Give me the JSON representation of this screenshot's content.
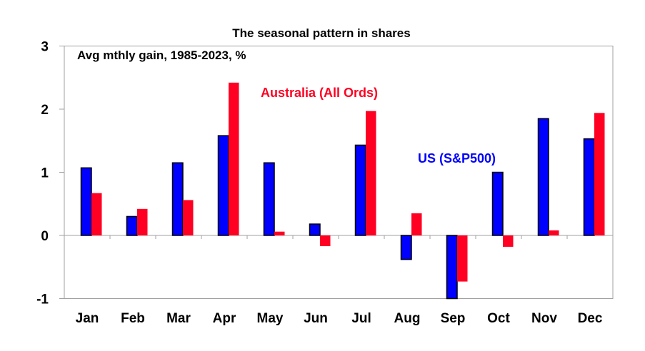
{
  "chart_data": {
    "type": "bar",
    "title": "The seasonal pattern in shares",
    "subtitle": "Avg mthly gain, 1985-2023, %",
    "xlabel": "",
    "ylabel": "",
    "ylim": [
      -1,
      3
    ],
    "yticks": [
      "3",
      "2",
      "1",
      "0",
      "-1"
    ],
    "ytick_values": [
      3,
      2,
      1,
      0,
      -1
    ],
    "grid": false,
    "categories": [
      "Jan",
      "Feb",
      "Mar",
      "Apr",
      "May",
      "Jun",
      "Jul",
      "Aug",
      "Sep",
      "Oct",
      "Nov",
      "Dec"
    ],
    "series": [
      {
        "name": "US (S&P500)",
        "color": "#0000ff",
        "values": [
          1.07,
          0.3,
          1.15,
          1.58,
          1.15,
          0.18,
          1.43,
          -0.38,
          -1.0,
          1.0,
          1.85,
          1.53
        ]
      },
      {
        "name": "Australia (All Ords)",
        "color": "#ff0022",
        "values": [
          0.67,
          0.42,
          0.56,
          2.42,
          0.06,
          -0.17,
          1.97,
          0.35,
          -0.73,
          -0.18,
          0.08,
          1.94
        ]
      }
    ]
  }
}
